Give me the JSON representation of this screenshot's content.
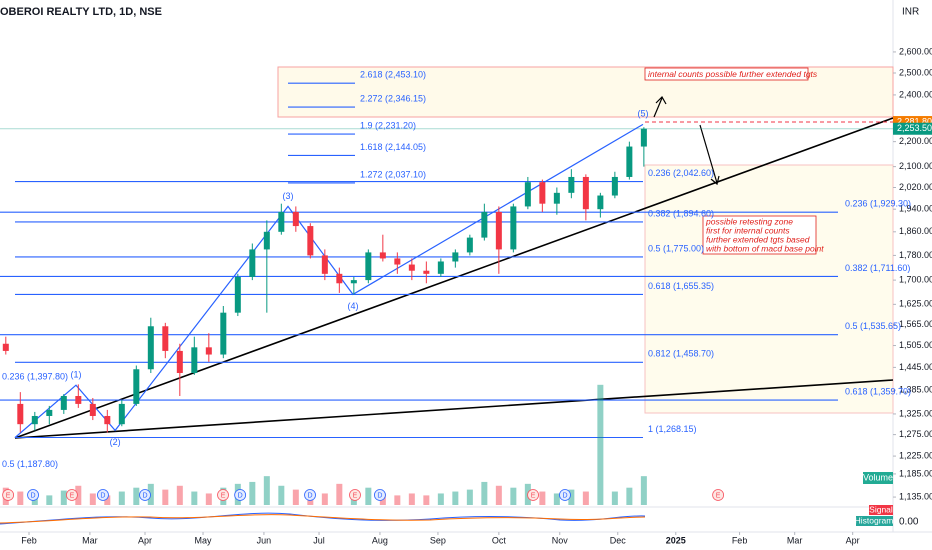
{
  "chart_data": {
    "type": "candlestick",
    "title": "OBEROI REALTY LTD, 1D, NSE",
    "currency": "INR",
    "log_scale": true,
    "xlim": [
      -10,
      297.9
    ],
    "ylim": [
      1108,
      2864
    ],
    "xticks": [
      {
        "value": 0,
        "label": "Feb"
      },
      {
        "value": 21,
        "label": "Mar"
      },
      {
        "value": 40,
        "label": "Apr"
      },
      {
        "value": 60,
        "label": "May"
      },
      {
        "value": 81,
        "label": "Jun"
      },
      {
        "value": 100,
        "label": "Jul"
      },
      {
        "value": 121,
        "label": "Aug"
      },
      {
        "value": 141,
        "label": "Sep"
      },
      {
        "value": 162,
        "label": "Oct"
      },
      {
        "value": 183,
        "label": "Nov"
      },
      {
        "value": 203,
        "label": "Dec"
      },
      {
        "value": 223,
        "label": "2025"
      },
      {
        "value": 245,
        "label": "Feb"
      },
      {
        "value": 264,
        "label": "Mar"
      },
      {
        "value": 284,
        "label": "Apr"
      }
    ],
    "yticks": [
      {
        "value": 2600,
        "label": "2,600.00"
      },
      {
        "value": 2500,
        "label": "2,500.00"
      },
      {
        "value": 2400,
        "label": "2,400.00"
      },
      {
        "value": 2200,
        "label": "2,200.00"
      },
      {
        "value": 2100,
        "label": "2,100.00"
      },
      {
        "value": 2020,
        "label": "2,020.00"
      },
      {
        "value": 1940,
        "label": "1,940.00"
      },
      {
        "value": 1860,
        "label": "1,860.00"
      },
      {
        "value": 1780,
        "label": "1,780.00"
      },
      {
        "value": 1700,
        "label": "1,700.00"
      },
      {
        "value": 1625,
        "label": "1,625.00"
      },
      {
        "value": 1565,
        "label": "1,565.00"
      },
      {
        "value": 1505,
        "label": "1,505.00"
      },
      {
        "value": 1445,
        "label": "1,445.00"
      },
      {
        "value": 1385,
        "label": "1,385.00"
      },
      {
        "value": 1325,
        "label": "1,325.00"
      },
      {
        "value": 1275,
        "label": "1,275.00"
      },
      {
        "value": 1225,
        "label": "1,225.00"
      },
      {
        "value": 1185,
        "label": "1,185.00"
      },
      {
        "value": 1135,
        "label": "1,135.00"
      }
    ],
    "up_color": "#089981",
    "down_color": "#f23645",
    "candles": {
      "x": [
        -8,
        -3,
        2,
        7,
        12,
        17,
        22,
        27,
        32,
        37,
        42,
        47,
        52,
        57,
        62,
        67,
        72,
        77,
        82,
        87,
        92,
        97,
        102,
        107,
        112,
        117,
        122,
        127,
        132,
        137,
        142,
        147,
        152,
        157,
        162,
        167,
        172,
        177,
        182,
        187,
        192,
        197,
        202,
        207,
        212
      ],
      "open": [
        1510,
        1350,
        1300,
        1320,
        1335,
        1370,
        1350,
        1320,
        1300,
        1350,
        1440,
        1560,
        1490,
        1430,
        1500,
        1480,
        1600,
        1710,
        1800,
        1860,
        1930,
        1880,
        1780,
        1720,
        1690,
        1700,
        1790,
        1770,
        1750,
        1730,
        1720,
        1760,
        1790,
        1840,
        1930,
        1800,
        1950,
        2040,
        1960,
        2000,
        2060,
        1940,
        1990,
        2060,
        2180
      ],
      "high": [
        1530,
        1380,
        1330,
        1345,
        1375,
        1400,
        1365,
        1335,
        1360,
        1450,
        1585,
        1570,
        1510,
        1530,
        1540,
        1620,
        1720,
        1820,
        1900,
        1960,
        1950,
        1890,
        1800,
        1740,
        1710,
        1800,
        1850,
        1790,
        1770,
        1760,
        1770,
        1800,
        1850,
        1960,
        1950,
        1960,
        2060,
        2050,
        2020,
        2090,
        2070,
        2000,
        2080,
        2200,
        2260
      ],
      "low": [
        1480,
        1280,
        1285,
        1300,
        1325,
        1340,
        1310,
        1280,
        1295,
        1345,
        1430,
        1470,
        1370,
        1425,
        1460,
        1470,
        1590,
        1700,
        1600,
        1850,
        1860,
        1770,
        1700,
        1660,
        1655,
        1690,
        1760,
        1720,
        1700,
        1690,
        1710,
        1740,
        1780,
        1830,
        1720,
        1790,
        1940,
        1930,
        1920,
        1980,
        1900,
        1910,
        1980,
        2050,
        2100
      ],
      "close": [
        1490,
        1300,
        1320,
        1335,
        1370,
        1350,
        1320,
        1300,
        1350,
        1440,
        1560,
        1490,
        1430,
        1500,
        1480,
        1600,
        1710,
        1800,
        1860,
        1930,
        1880,
        1780,
        1720,
        1690,
        1700,
        1790,
        1770,
        1750,
        1730,
        1720,
        1760,
        1790,
        1840,
        1930,
        1800,
        1950,
        2040,
        1960,
        2000,
        2060,
        1940,
        1990,
        2060,
        2180,
        2253.5
      ],
      "volume": [
        18,
        14,
        12,
        10,
        15,
        20,
        12,
        10,
        14,
        18,
        22,
        16,
        20,
        14,
        12,
        18,
        22,
        24,
        30,
        20,
        16,
        14,
        12,
        22,
        14,
        18,
        12,
        10,
        12,
        10,
        12,
        14,
        16,
        24,
        20,
        18,
        22,
        14,
        12,
        16,
        14,
        125,
        14,
        18,
        30
      ]
    },
    "volume_ylim": [
      0,
      130
    ],
    "last_price": {
      "value": 2253.5,
      "label": "2,253.50"
    },
    "marked_price": {
      "value": 2281.8,
      "label": "2,281.80"
    },
    "fib_extension": [
      {
        "label": "2.618 (2,453.10)",
        "value": 2453.1
      },
      {
        "label": "2.272 (2,346.15)",
        "value": 2346.15
      },
      {
        "label": "1.9 (2,231.20)",
        "value": 2231.2
      },
      {
        "label": "1.618 (2,144.05)",
        "value": 2144.05
      },
      {
        "label": "1.272 (2,037.10)",
        "value": 2037.1
      }
    ],
    "fib_retracement_a": [
      {
        "label": "0.236 (2,042.60)",
        "value": 2042.6
      },
      {
        "label": "0.382 (1,894.60)",
        "value": 1894.6
      },
      {
        "label": "0.5 (1,775.00)",
        "value": 1775
      },
      {
        "label": "0.618 (1,655.35)",
        "value": 1655.35
      },
      {
        "label": "0.812 (1,458.70)",
        "value": 1458.7
      },
      {
        "label": "1 (1,268.15)",
        "value": 1268.15
      }
    ],
    "fib_retracement_b": [
      {
        "label": "0.236 (1,929.30)",
        "value": 1929.3
      },
      {
        "label": "0.382 (1,711.60)",
        "value": 1711.6
      },
      {
        "label": "0.5 (1,535.65)",
        "value": 1535.65
      },
      {
        "label": "0.618 (1,359.70)",
        "value": 1359.7
      }
    ],
    "fib_retracement_c": [
      {
        "label": "0.236 (1,397.80)",
        "value": 1397.8
      },
      {
        "label": "0.5 (1,187.80)",
        "value": 1187.8
      }
    ],
    "waves": {
      "labels": [
        "(1)",
        "(2)",
        "(3)",
        "(4)",
        "(5)"
      ],
      "x": [
        -4.8,
        16.2,
        29.7,
        89.3,
        111.7,
        211.7
      ],
      "values": [
        1268.15,
        1397.8,
        1285,
        1950,
        1655.35,
        2272
      ]
    },
    "events": {
      "labels": [
        "E",
        "D",
        "E",
        "D",
        "D",
        "E",
        "D",
        "D",
        "E",
        "D",
        "E",
        "D",
        "E"
      ],
      "x": [
        -7.2,
        1.4,
        14.8,
        25.5,
        40,
        66.9,
        72.8,
        96.9,
        112.4,
        121,
        173.8,
        184.8,
        237.6
      ]
    },
    "annotations": {
      "targets": "internal counts possible further extended tgts",
      "retest_lines": [
        "possible retesting zone",
        "first for internal counts",
        "further extended tgts based",
        "with bottom of macd base point"
      ]
    },
    "panes": {
      "volume": "Volume",
      "signal": "Signal",
      "histogram": "Histogram",
      "macd_zero": "0.00"
    }
  }
}
